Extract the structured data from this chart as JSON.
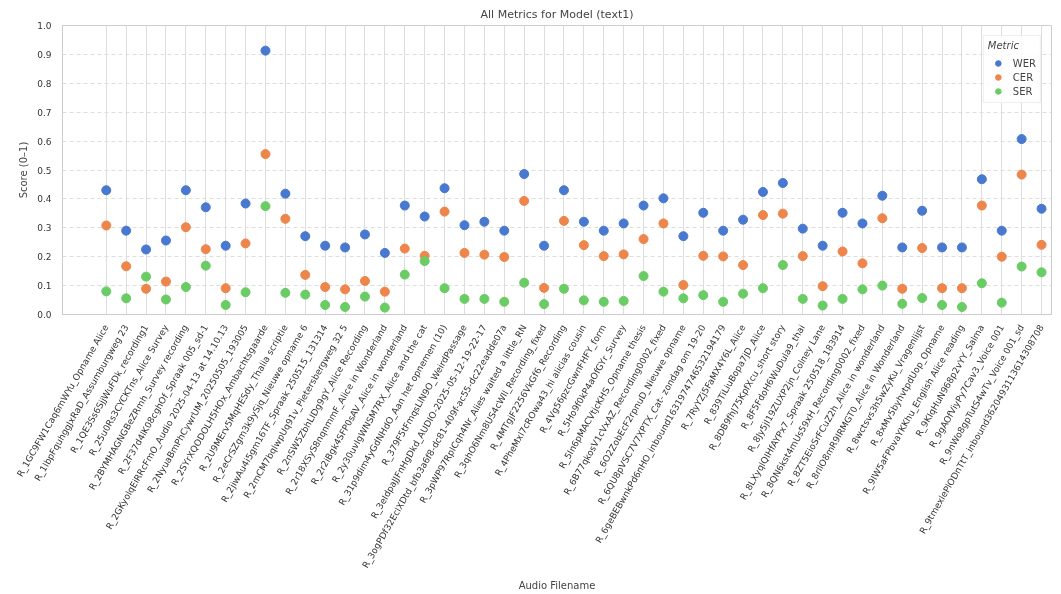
{
  "chart_data": {
    "type": "scatter",
    "title": "All Metrics for Model (text1)",
    "xlabel": "Audio Filename",
    "ylabel": "Score (0–1)",
    "legend_title": "Metric",
    "legend": "top right",
    "grid": true,
    "marker": "circle",
    "ylim": [
      0,
      1
    ],
    "yticks": [
      {
        "value": 0,
        "label": "0.0"
      },
      {
        "value": 0.1,
        "label": "0.1"
      },
      {
        "value": 0.2,
        "label": "0.2"
      },
      {
        "value": 0.3,
        "label": "0.3"
      },
      {
        "value": 0.4,
        "label": "0.4"
      },
      {
        "value": 0.5,
        "label": "0.5"
      },
      {
        "value": 0.6,
        "label": "0.6"
      },
      {
        "value": 0.7,
        "label": "0.7"
      },
      {
        "value": 0.8,
        "label": "0.8"
      },
      {
        "value": 0.9,
        "label": "0.9"
      },
      {
        "value": 1,
        "label": "1.0"
      }
    ],
    "categories": [
      "R_1GC9FW1Caq6mWYu_Opname Alice",
      "R_1lbpFquhggJxRaD_Assumburgweg 23",
      "R_1QE3Ss6SjjWuFDk_recording1",
      "R_25u0Rs3CYCKTns_Alice Survey",
      "R_2BYMHAGNGBeZRmh_Survey recording",
      "R_2F37d4lK08cghOf_Spraak 005_sd-1",
      "R_2GKyolqEiRRcFmO_Audio 2025-04-13 at 14.10.13",
      "R_2NyuaBmPhCywrUM_20250505_193005",
      "R_2SYrXQODOLH5HOx_Ambachtsgaarde",
      "R_2U9MErv5MqHESdy_Thalia scriptie",
      "R_2eCrSZgm3k9ySjq_Nieuwe opname 6",
      "R_2jiwAu4i5gm16TF_Spraak 250515_131314",
      "R_2mCM7bqlwpUq91v_Pietersbergweg 32 5",
      "R_2nSW5ZbhLIDg9gY_Alice Recording",
      "R_2r18XSyS8nqnmmF_Alice in Wonderland",
      "R_2r2iBgk4SFP0sAV_Alice in wonderland",
      "R_2y30uvIgWNSM7RX_Alice and the cat",
      "R_31p9dim4yGdNHdO_Aan het opnemen (10)",
      "R_379F5tFmqsLlN9O_WeirdPassage",
      "R_3eIdpaJJFnHgDkd_AUDIO-2025-05-12-19-22-17",
      "R_3ogPDf32EclXDtd_bfb3a6f8-dc81-409f-ac55-dc22eadde07a",
      "R_3pWP97RplCqh4Nr_Alies waited a little_RN",
      "R_3qhO6Nm8US4cWIl_Recording_fixed",
      "R_4MTgjF2256VkGf6_Recording",
      "R_4PheMxl7cROwa43_hi alicias cousin",
      "R_4Vg56pzcGwnFHFY_form",
      "R_5Ho9f0kP4aOfGYr_Survey",
      "R_5In6pMACVtjcKHS_Opname thesis",
      "R_6B77qkosV1cVxAZ_Recording0002_fixed",
      "R_6O2ZobEcF2rpnuD_Nieuwe opname",
      "R_6QU8pVSC7V7XPTX_Cat- zondag om 19-20",
      "R_6geBEBwnkPd6nHO_inbound1631974746532194179",
      "R_7RyYZj5FaMX4Y6L_Alice",
      "R_839TiLiuBopa7jD_Alice",
      "R_8DB9fhJ75KpfXcu_short story",
      "R_8F5FdoH6WuDula9_thai",
      "R_8Jy5jI19ZUXP2jn_Colney Lane",
      "R_8LXyqlQIHfAYPx7_Spraak 250518_183914",
      "R_8QN6kst4mUs59xH_Recording0002_fixed",
      "R_8ZT5EioSrFCuZ2h_Alice in wonderland",
      "R_8rllO8mR9IRMGT0_Alice in Wonderland",
      "R_8wctsvs3h5wZyKu_Vragenlijst",
      "R_8xMv5byhvtpdUop_Opname",
      "R_9IW5aFPbvaYKKhu_English Alice reading",
      "R_9KIqHuN968p2vYY_Salma",
      "R_9gAOfViyPy7Cav3_Voice 001",
      "R_9nWo8gpTutS4wTv_Voice 001_sd",
      "R_9tmexlePlODnTtT_inbound3620493113614308708"
    ],
    "series": [
      {
        "name": "WER",
        "color": "#4878d0",
        "values": [
          0.43,
          0.29,
          0.225,
          0.256,
          0.43,
          0.371,
          0.238,
          0.384,
          0.913,
          0.418,
          0.271,
          0.238,
          0.232,
          0.277,
          0.213,
          0.377,
          0.339,
          0.437,
          0.309,
          0.321,
          0.29,
          0.486,
          0.238,
          0.43,
          0.321,
          0.29,
          0.315,
          0.377,
          0.402,
          0.271,
          0.352,
          0.29,
          0.328,
          0.424,
          0.455,
          0.297,
          0.238,
          0.352,
          0.315,
          0.411,
          0.232,
          0.359,
          0.232,
          0.232,
          0.468,
          0.29,
          0.607,
          0.366
        ]
      },
      {
        "name": "CER",
        "color": "#ee854a",
        "values": [
          0.308,
          0.167,
          0.089,
          0.114,
          0.302,
          0.226,
          0.091,
          0.246,
          0.555,
          0.331,
          0.137,
          0.095,
          0.087,
          0.116,
          0.079,
          0.228,
          0.203,
          0.356,
          0.213,
          0.207,
          0.199,
          0.393,
          0.092,
          0.324,
          0.24,
          0.202,
          0.208,
          0.261,
          0.315,
          0.102,
          0.203,
          0.201,
          0.171,
          0.344,
          0.349,
          0.202,
          0.098,
          0.218,
          0.177,
          0.333,
          0.089,
          0.23,
          0.091,
          0.091,
          0.377,
          0.2,
          0.484,
          0.241
        ]
      },
      {
        "name": "SER",
        "color": "#6acc64",
        "values": [
          0.08,
          0.056,
          0.131,
          0.052,
          0.095,
          0.169,
          0.033,
          0.077,
          0.375,
          0.075,
          0.069,
          0.033,
          0.026,
          0.062,
          0.024,
          0.138,
          0.185,
          0.091,
          0.054,
          0.054,
          0.044,
          0.11,
          0.036,
          0.089,
          0.049,
          0.044,
          0.047,
          0.133,
          0.079,
          0.056,
          0.067,
          0.044,
          0.072,
          0.091,
          0.171,
          0.054,
          0.031,
          0.054,
          0.087,
          0.1,
          0.037,
          0.057,
          0.033,
          0.026,
          0.108,
          0.041,
          0.166,
          0.146
        ]
      }
    ]
  }
}
